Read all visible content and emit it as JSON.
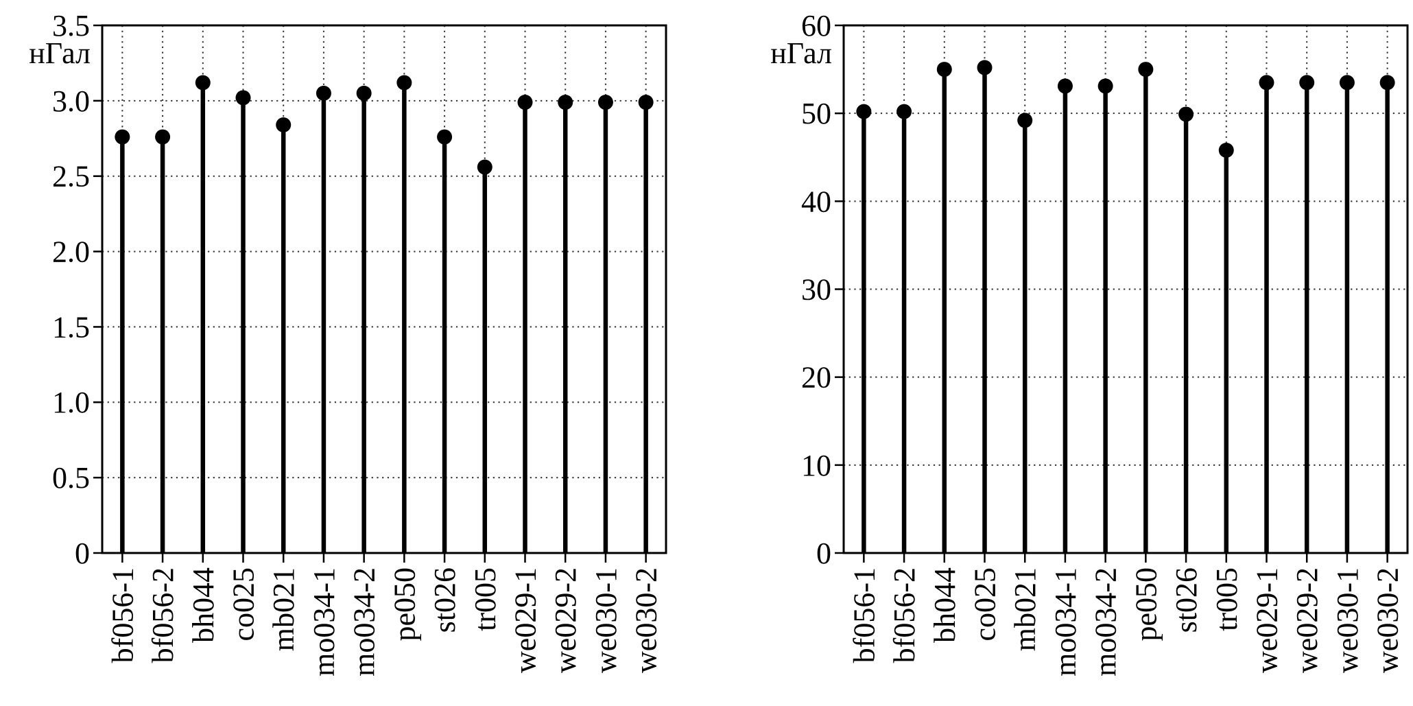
{
  "figure": {
    "background": "#ffffff",
    "ink_color": "#000000",
    "grid_color": "#2f2f2f",
    "unit_label": "нГал"
  },
  "chart_data": [
    {
      "type": "scatter",
      "variant": "stem-lollipop",
      "title": "",
      "xlabel": "",
      "ylabel": "нГал",
      "categories": [
        "bf056-1",
        "bf056-2",
        "bh044",
        "co025",
        "mb021",
        "mo034-1",
        "mo034-2",
        "pe050",
        "st026",
        "tr005",
        "we029-1",
        "we029-2",
        "we030-1",
        "we030-2"
      ],
      "values": [
        2.76,
        2.76,
        3.12,
        3.02,
        2.84,
        3.05,
        3.05,
        3.12,
        2.76,
        2.56,
        2.99,
        2.99,
        2.99,
        2.99
      ],
      "ylim": [
        0,
        3.5
      ],
      "yticks": [
        0,
        0.5,
        1.0,
        1.5,
        2.0,
        2.5,
        3.0,
        3.5
      ],
      "ytick_labels": [
        "0",
        "0.5",
        "1.0",
        "1.5",
        "2.0",
        "2.5",
        "3.0",
        "3.5"
      ],
      "grid": {
        "horizontal": "dotted",
        "vertical": "dotted"
      },
      "legend": "none",
      "marker": "filled-circle"
    },
    {
      "type": "scatter",
      "variant": "stem-lollipop",
      "title": "",
      "xlabel": "",
      "ylabel": "нГал",
      "categories": [
        "bf056-1",
        "bf056-2",
        "bh044",
        "co025",
        "mb021",
        "mo034-1",
        "mo034-2",
        "pe050",
        "st026",
        "tr005",
        "we029-1",
        "we029-2",
        "we030-1",
        "we030-2"
      ],
      "values": [
        50.2,
        50.2,
        55.0,
        55.2,
        49.2,
        53.1,
        53.1,
        55.0,
        49.9,
        45.8,
        53.5,
        53.5,
        53.5,
        53.5
      ],
      "ylim": [
        0,
        60
      ],
      "yticks": [
        0,
        10,
        20,
        30,
        40,
        50,
        60
      ],
      "ytick_labels": [
        "0",
        "10",
        "20",
        "30",
        "40",
        "50",
        "60"
      ],
      "grid": {
        "horizontal": "dotted",
        "vertical": "dotted"
      },
      "legend": "none",
      "marker": "filled-circle"
    }
  ]
}
